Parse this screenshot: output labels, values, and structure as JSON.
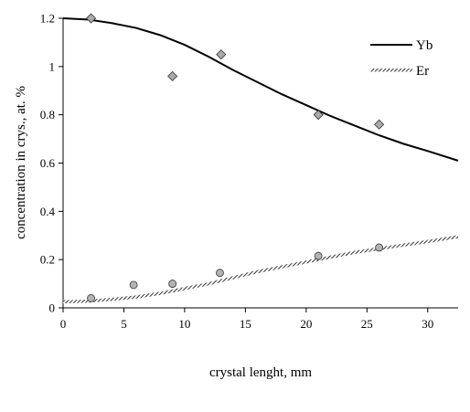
{
  "chart_data": {
    "type": "line",
    "title": "",
    "xlabel": "crystal lenght, mm",
    "ylabel": "concentration in crys., at. %",
    "xlim": [
      0,
      32.5
    ],
    "ylim": [
      0,
      1.2
    ],
    "x_ticks": [
      0,
      5,
      10,
      15,
      20,
      25,
      30
    ],
    "x_tick_labels": [
      "0",
      "5",
      "10",
      "15",
      "20",
      "25",
      "30"
    ],
    "y_ticks": [
      0,
      0.2,
      0.4,
      0.6,
      0.8,
      1.0,
      1.2
    ],
    "y_tick_labels": [
      "0",
      "0.2",
      "0.4",
      "0.6",
      "0.8",
      "1",
      "1.2"
    ],
    "grid": false,
    "legend_position": "top-right",
    "series": [
      {
        "name": "Yb",
        "style": "solid",
        "color": "#000000",
        "curve_x": [
          0,
          2,
          4,
          6,
          8,
          10,
          12,
          14,
          16,
          18,
          20,
          22,
          24,
          26,
          28,
          30,
          32.5
        ],
        "curve_y": [
          1.2,
          1.195,
          1.18,
          1.16,
          1.13,
          1.09,
          1.04,
          0.985,
          0.935,
          0.885,
          0.84,
          0.795,
          0.755,
          0.715,
          0.68,
          0.65,
          0.61
        ]
      },
      {
        "name": "Er",
        "style": "hatched",
        "color": "#000000",
        "curve_x": [
          0,
          2,
          4,
          6,
          8,
          10,
          12,
          14,
          16,
          18,
          20,
          22,
          24,
          26,
          28,
          30,
          32.5
        ],
        "curve_y": [
          0.025,
          0.028,
          0.035,
          0.045,
          0.06,
          0.08,
          0.1,
          0.125,
          0.15,
          0.17,
          0.19,
          0.21,
          0.23,
          0.245,
          0.26,
          0.275,
          0.295
        ]
      }
    ],
    "markers": [
      {
        "series": "Yb",
        "shape": "diamond",
        "fill": "#a9a9a9",
        "x": [
          2.3,
          9,
          13,
          21,
          26
        ],
        "y": [
          1.2,
          0.96,
          1.05,
          0.8,
          0.76
        ]
      },
      {
        "series": "Er",
        "shape": "circle",
        "fill": "#b3b3b3",
        "x": [
          2.3,
          5.8,
          9,
          12.9,
          21,
          26
        ],
        "y": [
          0.04,
          0.095,
          0.1,
          0.145,
          0.215,
          0.25
        ]
      }
    ]
  }
}
